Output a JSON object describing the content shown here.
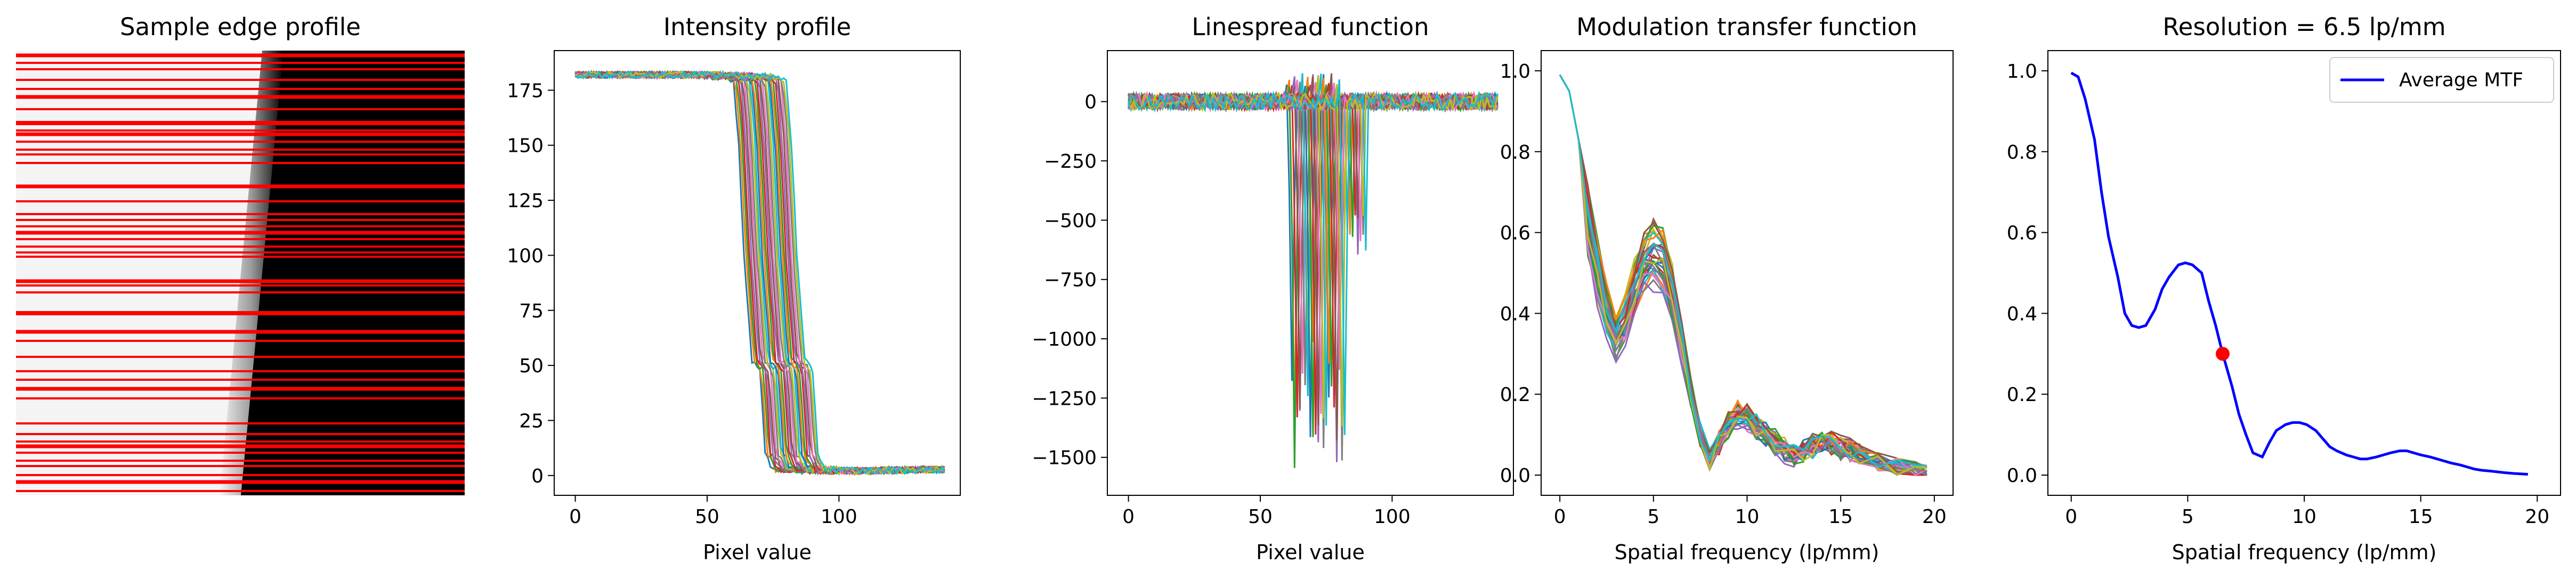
{
  "chart_data": [
    {
      "type": "image",
      "title": "Sample edge profile",
      "annotation": "grayscale edge image (white left, black right) with red horizontal sample lines",
      "colors": {
        "lines": "#ff0000",
        "light": "#f4f4f4",
        "dark": "#000000"
      }
    },
    {
      "type": "line",
      "title": "Intensity profile",
      "xlabel": "Pixel value",
      "ylabel": "",
      "xlim": [
        -8,
        146
      ],
      "ylim": [
        -9,
        193
      ],
      "xticks": [
        0,
        50,
        100
      ],
      "yticks": [
        0,
        25,
        50,
        75,
        100,
        125,
        150,
        175
      ],
      "series_count": 30,
      "approx_curve": {
        "x": [
          0,
          40,
          55,
          60,
          62,
          64,
          67,
          70,
          72,
          75,
          90,
          140
        ],
        "y": [
          182,
          182,
          181,
          180,
          150,
          100,
          52,
          48,
          10,
          3,
          2,
          3
        ]
      },
      "edge_position_range": [
        62,
        82
      ]
    },
    {
      "type": "line",
      "title": "Linespread function",
      "xlabel": "Pixel value",
      "ylabel": "",
      "xlim": [
        -8,
        146
      ],
      "ylim": [
        -1660,
        215
      ],
      "xticks": [
        0,
        50,
        100
      ],
      "yticks": [
        0,
        -250,
        -500,
        -750,
        -1000,
        -1250,
        -1500
      ],
      "series_count": 30,
      "min_range": [
        -1550,
        -1000
      ]
    },
    {
      "type": "line",
      "title": "Modulation transfer function",
      "xlabel": "Spatial frequency (lp/mm)",
      "ylabel": "",
      "xlim": [
        -1,
        21
      ],
      "ylim": [
        -0.05,
        1.05
      ],
      "xticks": [
        0,
        5,
        10,
        15,
        20
      ],
      "yticks": [
        0.0,
        0.2,
        0.4,
        0.6,
        0.8,
        1.0
      ],
      "series_count": 30,
      "approx_curve": {
        "x": [
          0,
          0.5,
          1,
          1.5,
          2,
          2.5,
          3,
          3.5,
          4,
          4.5,
          5,
          5.5,
          6,
          6.5,
          7,
          7.5,
          8,
          8.5,
          9,
          9.5,
          10,
          10.5,
          11,
          11.5,
          12,
          12.5,
          13,
          13.5,
          14,
          14.5,
          15,
          15.5,
          16,
          17,
          18,
          19,
          19.6
        ],
        "y": [
          0.99,
          0.95,
          0.83,
          0.62,
          0.5,
          0.4,
          0.34,
          0.38,
          0.46,
          0.52,
          0.54,
          0.52,
          0.44,
          0.32,
          0.2,
          0.1,
          0.04,
          0.08,
          0.12,
          0.15,
          0.14,
          0.12,
          0.1,
          0.08,
          0.06,
          0.05,
          0.06,
          0.07,
          0.08,
          0.08,
          0.07,
          0.06,
          0.05,
          0.03,
          0.02,
          0.01,
          0.005
        ]
      }
    },
    {
      "type": "line",
      "title": "Resolution = 6.5 lp/mm",
      "xlabel": "Spatial frequency (lp/mm)",
      "ylabel": "",
      "xlim": [
        -1,
        21
      ],
      "ylim": [
        -0.05,
        1.05
      ],
      "xticks": [
        0,
        5,
        10,
        15,
        20
      ],
      "yticks": [
        0.0,
        0.2,
        0.4,
        0.6,
        0.8,
        1.0
      ],
      "series": [
        {
          "name": "Average MTF",
          "color": "#0000ff",
          "x": [
            0,
            0.3,
            0.6,
            1.0,
            1.3,
            1.6,
            2.0,
            2.3,
            2.6,
            2.9,
            3.2,
            3.6,
            3.9,
            4.2,
            4.6,
            4.9,
            5.2,
            5.6,
            5.9,
            6.2,
            6.5,
            6.9,
            7.2,
            7.5,
            7.8,
            8.2,
            8.5,
            8.8,
            9.2,
            9.5,
            9.8,
            10.1,
            10.5,
            10.8,
            11.1,
            11.4,
            11.8,
            12.1,
            12.4,
            12.7,
            13.1,
            13.4,
            13.7,
            14.1,
            14.4,
            14.7,
            15.0,
            15.4,
            15.7,
            16.0,
            16.3,
            16.7,
            17.0,
            17.3,
            17.6,
            18.0,
            18.3,
            18.6,
            19.0,
            19.3,
            19.6
          ],
          "y": [
            0.995,
            0.985,
            0.93,
            0.83,
            0.7,
            0.59,
            0.49,
            0.4,
            0.37,
            0.365,
            0.37,
            0.41,
            0.46,
            0.49,
            0.52,
            0.525,
            0.52,
            0.5,
            0.43,
            0.37,
            0.3,
            0.22,
            0.15,
            0.1,
            0.055,
            0.045,
            0.08,
            0.11,
            0.125,
            0.13,
            0.13,
            0.125,
            0.11,
            0.09,
            0.07,
            0.06,
            0.05,
            0.045,
            0.04,
            0.04,
            0.045,
            0.05,
            0.055,
            0.06,
            0.06,
            0.055,
            0.05,
            0.045,
            0.04,
            0.035,
            0.03,
            0.025,
            0.02,
            0.015,
            0.012,
            0.01,
            0.008,
            0.006,
            0.004,
            0.003,
            0.002
          ]
        }
      ],
      "marker": {
        "x": 6.5,
        "y": 0.3,
        "color": "#ff0000"
      },
      "legend": {
        "position": "top-right"
      }
    }
  ]
}
